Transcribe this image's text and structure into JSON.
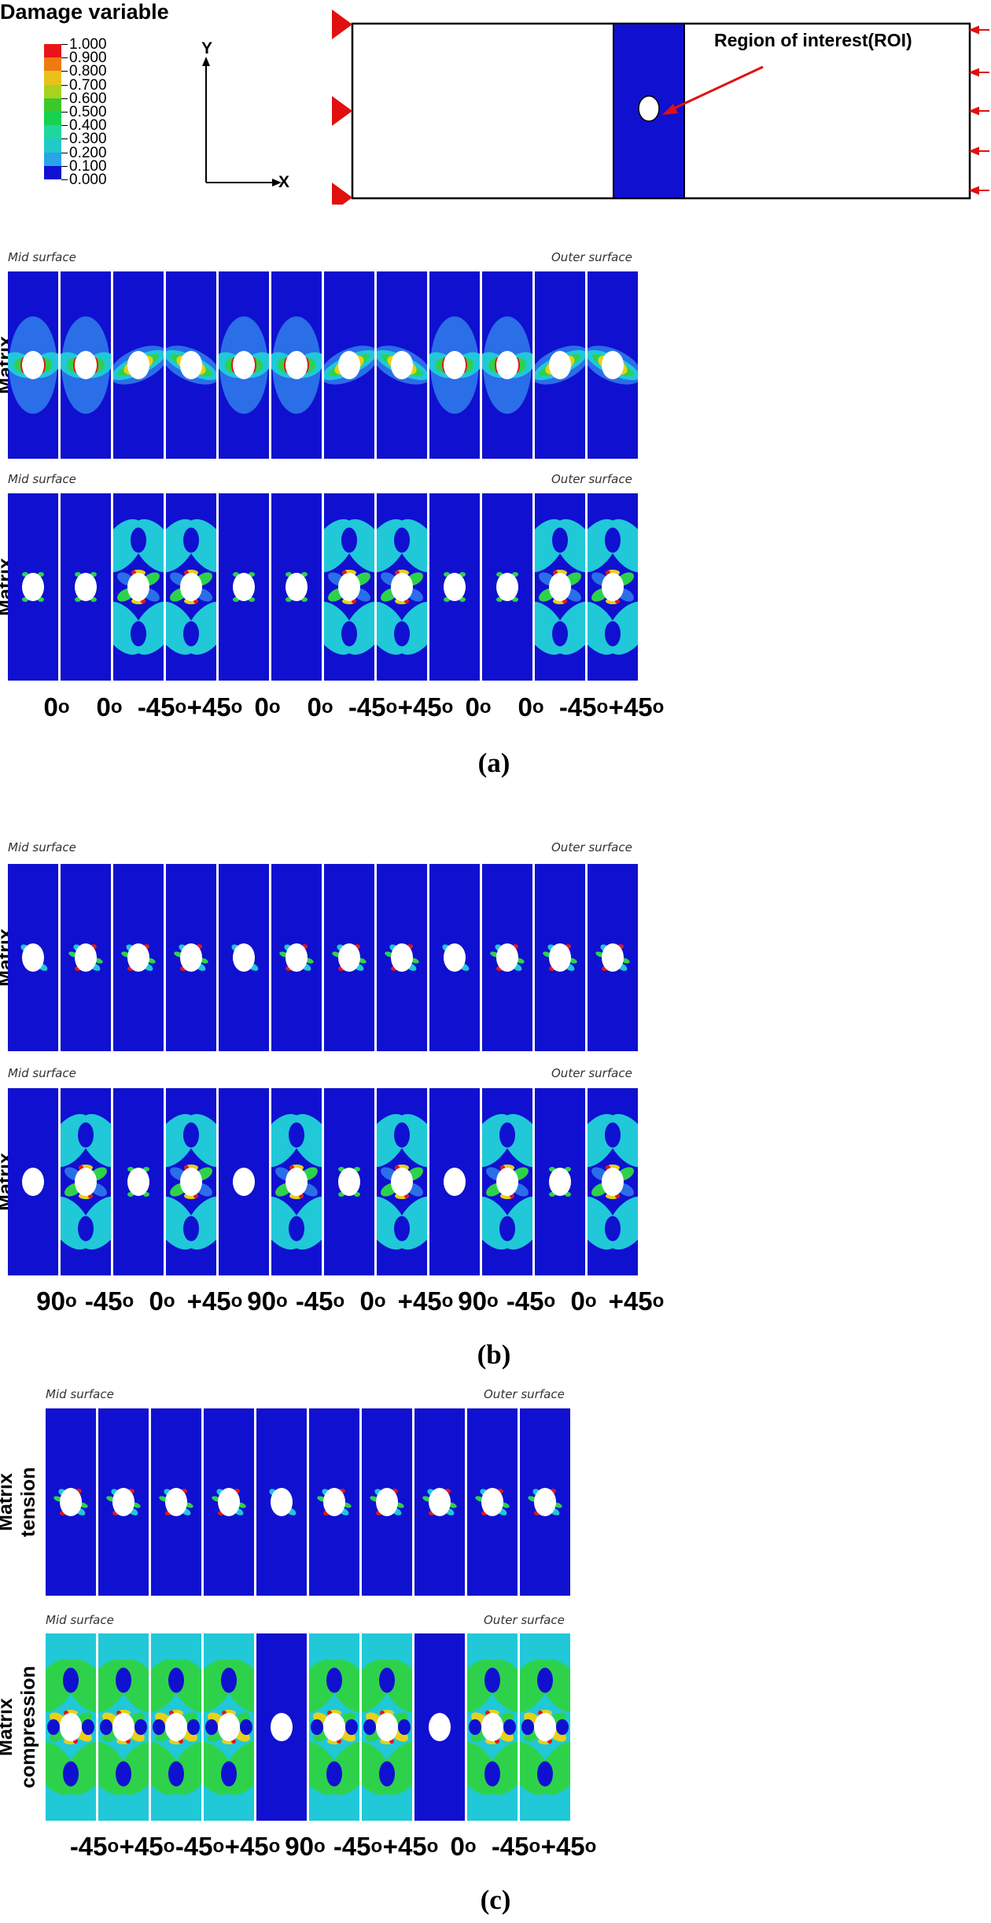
{
  "legend": {
    "title": "Damage variable",
    "labels": [
      "1.000",
      "0.900",
      "0.800",
      "0.700",
      "0.600",
      "0.500",
      "0.400",
      "0.300",
      "0.200",
      "0.100",
      "0.000"
    ],
    "colors": [
      "#e8141a",
      "#f07a12",
      "#e8c21a",
      "#a9d21e",
      "#3ac92a",
      "#17d24f",
      "#1fd79c",
      "#21c9c9",
      "#2aa3ea",
      "#2a5fe6",
      "#1010d0"
    ]
  },
  "axes": {
    "y": "Y",
    "x": "X"
  },
  "schematic": {
    "roi_label": "Region of interest(ROI)"
  },
  "surfaces": {
    "mid": "Mid surface",
    "outer": "Outer surface"
  },
  "rows": {
    "tension": [
      "Matrix",
      "tension"
    ],
    "compression": [
      "Matrix",
      "compression"
    ]
  },
  "panels": [
    {
      "caption": "(a)",
      "angles": [
        "0o",
        "0o",
        "-45o",
        "+45o",
        "0o",
        "0o",
        "-45o",
        "+45o",
        "0o",
        "0o",
        "-45o",
        "+45o"
      ],
      "cells": 12
    },
    {
      "caption": "(b)",
      "angles": [
        "90o",
        "-45o",
        "0o",
        "+45o",
        "90o",
        "-45o",
        "0o",
        "+45o",
        "90o",
        "-45o",
        "0o",
        "+45o"
      ],
      "cells": 12
    },
    {
      "caption": "(c)",
      "angles": [
        "-45o",
        "+45o",
        "-45o",
        "+45o",
        "90o",
        "-45o",
        "+45o",
        "0o",
        "-45o",
        "+45o"
      ],
      "cells": 10
    }
  ],
  "colors": {
    "field_blue": "#1010d0",
    "light_blue": "#2a6ee8",
    "cyan": "#20c8d8",
    "green": "#2ed24a",
    "yellow": "#e8d01a",
    "red": "#e01818",
    "arrow_red": "#e01010"
  }
}
